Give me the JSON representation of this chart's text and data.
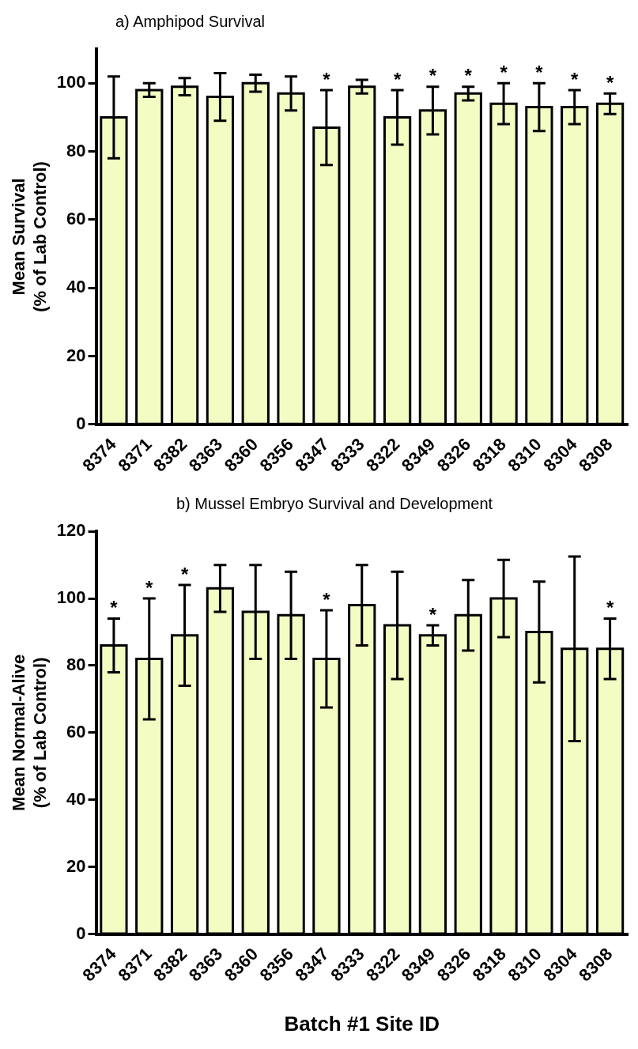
{
  "chart_data": [
    {
      "type": "bar",
      "title": "a) Amphipod Survival",
      "ylabel": "Mean Survival\n(% of Lab Control)",
      "categories": [
        "8374",
        "8371",
        "8382",
        "8363",
        "8360",
        "8356",
        "8347",
        "8333",
        "8322",
        "8349",
        "8326",
        "8318",
        "8310",
        "8304",
        "8308"
      ],
      "values": [
        90,
        98,
        99,
        96,
        100,
        97,
        87,
        99,
        90,
        92,
        97,
        94,
        93,
        93,
        94
      ],
      "errors": [
        12,
        2,
        2.5,
        7,
        2.5,
        5,
        11,
        2,
        8,
        7,
        2,
        6,
        7,
        5,
        3
      ],
      "color": "#f3fcc3",
      "ylim": [
        0,
        110
      ],
      "yticks": [
        0,
        20,
        40,
        60,
        80,
        100
      ],
      "grid": false,
      "legend": false,
      "annotations": [
        {
          "text": "*",
          "x": "8347",
          "y": 98
        },
        {
          "text": "*",
          "x": "8322",
          "y": 98
        },
        {
          "text": "*",
          "x": "8349",
          "y": 99
        },
        {
          "text": "*",
          "x": "8326",
          "y": 99
        },
        {
          "text": "*",
          "x": "8318",
          "y": 100
        },
        {
          "text": "*",
          "x": "8310",
          "y": 100
        },
        {
          "text": "*",
          "x": "8304",
          "y": 98
        },
        {
          "text": "*",
          "x": "8308",
          "y": 97
        }
      ]
    },
    {
      "type": "bar",
      "title": "b) Mussel Embryo Survival and Development",
      "ylabel": "Mean Normal-Alive\n(% of Lab Control)",
      "xlabel": "Batch #1 Site ID",
      "categories": [
        "8374",
        "8371",
        "8382",
        "8363",
        "8360",
        "8356",
        "8347",
        "8333",
        "8322",
        "8349",
        "8326",
        "8318",
        "8310",
        "8304",
        "8308"
      ],
      "values": [
        86,
        82,
        89,
        103,
        96,
        95,
        82,
        98,
        92,
        89,
        95,
        100,
        90,
        85,
        85
      ],
      "errors": [
        8,
        18,
        15,
        7,
        14,
        13,
        14.5,
        12,
        16,
        3,
        10.5,
        11.5,
        15,
        27.5,
        9
      ],
      "color": "#f3fcc3",
      "ylim": [
        0,
        120
      ],
      "yticks": [
        0,
        20,
        40,
        60,
        80,
        100,
        120
      ],
      "grid": false,
      "legend": false,
      "annotations": [
        {
          "text": "*",
          "x": "8374",
          "y": 94
        },
        {
          "text": "*",
          "x": "8371",
          "y": 100
        },
        {
          "text": "*",
          "x": "8382",
          "y": 104
        },
        {
          "text": "*",
          "x": "8347",
          "y": 96.5
        },
        {
          "text": "*",
          "x": "8349",
          "y": 92
        },
        {
          "text": "*",
          "x": "8308",
          "y": 94
        }
      ]
    }
  ]
}
